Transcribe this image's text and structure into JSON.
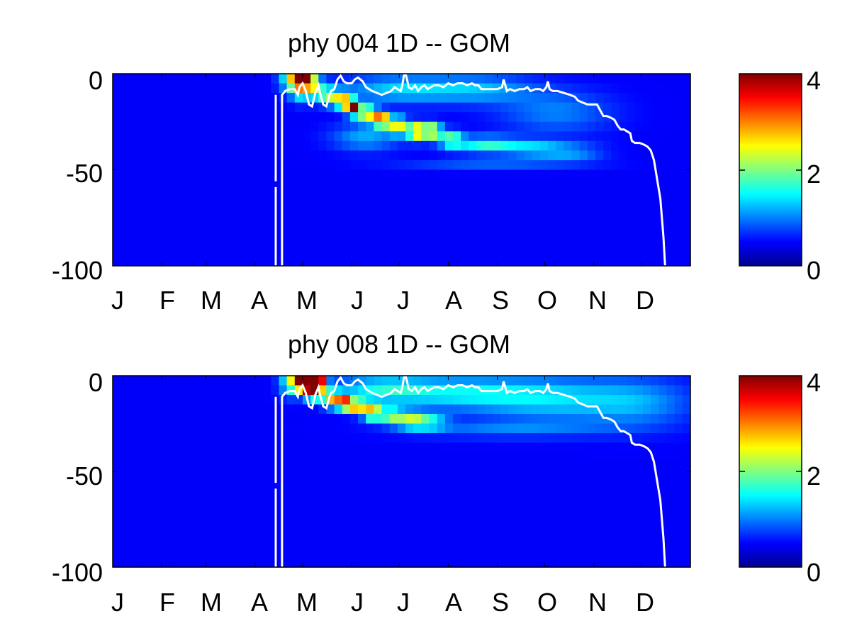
{
  "colors": {
    "colormap": "jet",
    "background_cell": "#00008f",
    "contour_line": "#ffffff",
    "axes": "#000000"
  },
  "chart_data": [
    {
      "type": "heatmap",
      "title": "phy  004 1D   -- GOM",
      "x_tick_labels": [
        "J",
        "F",
        "M",
        "A",
        "M",
        "J",
        "J",
        "A",
        "S",
        "O",
        "N",
        "D"
      ],
      "y_ticks": [
        0,
        -50,
        -100
      ],
      "y_tick_labels": [
        "0",
        "-50",
        "-100"
      ],
      "xlim": [
        0,
        365
      ],
      "ylim": [
        -100,
        0
      ],
      "colorbar": {
        "clim": [
          0,
          4
        ],
        "ticks": [
          0,
          2,
          4
        ],
        "tick_labels": [
          "0",
          "2",
          "4"
        ]
      },
      "blobs": [
        {
          "day": 112,
          "depth": -2,
          "value": 1.4,
          "sd": 5,
          "sz": 5
        },
        {
          "day": 117,
          "depth": -3,
          "value": 3.2,
          "sd": 3,
          "sz": 3
        },
        {
          "day": 121,
          "depth": -2,
          "value": 4.0,
          "sd": 2.5,
          "sz": 2.5
        },
        {
          "day": 125,
          "depth": -4,
          "value": 2.0,
          "sd": 3,
          "sz": 3
        },
        {
          "day": 118,
          "depth": -9,
          "value": 1.2,
          "sd": 4,
          "sz": 4
        },
        {
          "day": 128,
          "depth": -8,
          "value": 1.4,
          "sd": 5,
          "sz": 4
        },
        {
          "day": 137,
          "depth": -12,
          "value": 1.6,
          "sd": 4,
          "sz": 3
        },
        {
          "day": 146,
          "depth": -14,
          "value": 2.6,
          "sd": 4,
          "sz": 3
        },
        {
          "day": 152,
          "depth": -18,
          "value": 3.6,
          "sd": 3,
          "sz": 2.5
        },
        {
          "day": 161,
          "depth": -21,
          "value": 2.5,
          "sd": 4,
          "sz": 3
        },
        {
          "day": 170,
          "depth": -24,
          "value": 3.8,
          "sd": 3,
          "sz": 2.5
        },
        {
          "day": 180,
          "depth": -27,
          "value": 2.4,
          "sd": 4,
          "sz": 3
        },
        {
          "day": 192,
          "depth": -30,
          "value": 2.9,
          "sd": 4,
          "sz": 3
        },
        {
          "day": 202,
          "depth": -30,
          "value": 2.4,
          "sd": 4,
          "sz": 3
        },
        {
          "day": 214,
          "depth": -34,
          "value": 1.6,
          "sd": 5,
          "sz": 3
        },
        {
          "day": 235,
          "depth": -37,
          "value": 1.3,
          "sd": 14,
          "sz": 3
        },
        {
          "day": 265,
          "depth": -39,
          "value": 0.9,
          "sd": 14,
          "sz": 3
        },
        {
          "day": 290,
          "depth": -41,
          "value": 0.7,
          "sd": 14,
          "sz": 3
        },
        {
          "day": 160,
          "depth": -33,
          "value": 0.8,
          "sd": 15,
          "sz": 5
        },
        {
          "day": 180,
          "depth": -8,
          "value": 0.9,
          "sd": 25,
          "sz": 5
        },
        {
          "day": 230,
          "depth": -8,
          "value": 0.8,
          "sd": 25,
          "sz": 5
        },
        {
          "day": 280,
          "depth": -20,
          "value": 0.6,
          "sd": 25,
          "sz": 8
        },
        {
          "day": 240,
          "depth": -47,
          "value": 0.45,
          "sd": 40,
          "sz": 2
        }
      ],
      "contour": [
        [
          107,
          -11
        ],
        [
          107,
          -100
        ],
        [
          107,
          -11
        ],
        [
          109,
          -9
        ],
        [
          112,
          -8
        ],
        [
          115,
          -8
        ],
        [
          117,
          -11
        ],
        [
          118,
          -7
        ],
        [
          120,
          -5
        ],
        [
          122,
          -9
        ],
        [
          124,
          -16
        ],
        [
          126,
          -17
        ],
        [
          128,
          -10
        ],
        [
          130,
          -6
        ],
        [
          131,
          -10
        ],
        [
          133,
          -16
        ],
        [
          135,
          -17
        ],
        [
          137,
          -11
        ],
        [
          138,
          -9
        ],
        [
          140,
          -8
        ],
        [
          142,
          -3
        ],
        [
          144,
          -1
        ],
        [
          146,
          -4
        ],
        [
          148,
          -5
        ],
        [
          151,
          -5
        ],
        [
          153,
          -3
        ],
        [
          155,
          -2
        ],
        [
          158,
          -4
        ],
        [
          160,
          -7
        ],
        [
          162,
          -8
        ],
        [
          164,
          -9
        ],
        [
          167,
          -10
        ],
        [
          170,
          -11
        ],
        [
          173,
          -10
        ],
        [
          176,
          -9
        ],
        [
          178,
          -7
        ],
        [
          180,
          -8
        ],
        [
          182,
          -9
        ],
        [
          183,
          -6
        ],
        [
          184,
          -1
        ],
        [
          185,
          0
        ],
        [
          186,
          -3
        ],
        [
          187,
          -7
        ],
        [
          189,
          -8
        ],
        [
          191,
          -6
        ],
        [
          193,
          -9
        ],
        [
          195,
          -7
        ],
        [
          197,
          -6
        ],
        [
          199,
          -8
        ],
        [
          201,
          -7
        ],
        [
          203,
          -6
        ],
        [
          206,
          -6
        ],
        [
          209,
          -7
        ],
        [
          212,
          -5
        ],
        [
          215,
          -6
        ],
        [
          218,
          -5
        ],
        [
          221,
          -5
        ],
        [
          224,
          -6
        ],
        [
          227,
          -5
        ],
        [
          229,
          -6
        ],
        [
          231,
          -6
        ],
        [
          233,
          -8
        ],
        [
          236,
          -8
        ],
        [
          240,
          -8
        ],
        [
          243,
          -8
        ],
        [
          246,
          -7
        ],
        [
          247,
          -3
        ],
        [
          248,
          -6
        ],
        [
          249,
          -9
        ],
        [
          251,
          -8
        ],
        [
          254,
          -9
        ],
        [
          257,
          -8
        ],
        [
          260,
          -8
        ],
        [
          262,
          -7
        ],
        [
          264,
          -9
        ],
        [
          267,
          -8
        ],
        [
          270,
          -8
        ],
        [
          272,
          -9
        ],
        [
          274,
          -7
        ],
        [
          275,
          -4
        ],
        [
          276,
          -8
        ],
        [
          278,
          -9
        ],
        [
          281,
          -9
        ],
        [
          285,
          -10
        ],
        [
          289,
          -11
        ],
        [
          292,
          -12
        ],
        [
          294,
          -14
        ],
        [
          297,
          -15
        ],
        [
          300,
          -16
        ],
        [
          303,
          -16
        ],
        [
          306,
          -16
        ],
        [
          308,
          -19
        ],
        [
          310,
          -22
        ],
        [
          312,
          -22
        ],
        [
          315,
          -23
        ],
        [
          317,
          -24
        ],
        [
          319,
          -27
        ],
        [
          321,
          -29
        ],
        [
          323,
          -29
        ],
        [
          325,
          -30
        ],
        [
          327,
          -31
        ],
        [
          328,
          -35
        ],
        [
          330,
          -36
        ],
        [
          333,
          -36
        ],
        [
          336,
          -37
        ],
        [
          338,
          -38
        ],
        [
          340,
          -40
        ],
        [
          342,
          -45
        ],
        [
          344,
          -55
        ],
        [
          346,
          -65
        ],
        [
          347,
          -75
        ],
        [
          348,
          -85
        ],
        [
          349,
          -100
        ]
      ],
      "contour_gap": [
        [
          103,
          -11
        ],
        [
          103,
          -56
        ],
        [
          103,
          -59
        ],
        [
          103,
          -100
        ]
      ]
    },
    {
      "type": "heatmap",
      "title": "phy  008 1D   -- GOM",
      "x_tick_labels": [
        "J",
        "F",
        "M",
        "A",
        "M",
        "J",
        "J",
        "A",
        "S",
        "O",
        "N",
        "D"
      ],
      "y_ticks": [
        0,
        -50,
        -100
      ],
      "y_tick_labels": [
        "0",
        "-50",
        "-100"
      ],
      "xlim": [
        0,
        365
      ],
      "ylim": [
        -100,
        0
      ],
      "colorbar": {
        "clim": [
          0,
          4
        ],
        "ticks": [
          0,
          2,
          4
        ],
        "tick_labels": [
          "0",
          "2",
          "4"
        ]
      },
      "blobs": [
        {
          "day": 113,
          "depth": -3,
          "value": 1.6,
          "sd": 5,
          "sz": 5
        },
        {
          "day": 118,
          "depth": -3,
          "value": 3.4,
          "sd": 3,
          "sz": 3
        },
        {
          "day": 122,
          "depth": -3,
          "value": 4.2,
          "sd": 3,
          "sz": 3
        },
        {
          "day": 127,
          "depth": -3,
          "value": 4.3,
          "sd": 3,
          "sz": 3
        },
        {
          "day": 131,
          "depth": -4,
          "value": 3.2,
          "sd": 3,
          "sz": 3
        },
        {
          "day": 126,
          "depth": -9,
          "value": 3.0,
          "sd": 3,
          "sz": 2.5
        },
        {
          "day": 138,
          "depth": -12,
          "value": 2.4,
          "sd": 4,
          "sz": 3
        },
        {
          "day": 146,
          "depth": -14,
          "value": 3.3,
          "sd": 3,
          "sz": 2.5
        },
        {
          "day": 154,
          "depth": -16,
          "value": 2.9,
          "sd": 4,
          "sz": 2.5
        },
        {
          "day": 164,
          "depth": -19,
          "value": 2.6,
          "sd": 4,
          "sz": 3
        },
        {
          "day": 176,
          "depth": -21,
          "value": 1.7,
          "sd": 5,
          "sz": 3
        },
        {
          "day": 188,
          "depth": -23,
          "value": 1.6,
          "sd": 6,
          "sz": 3
        },
        {
          "day": 200,
          "depth": -24,
          "value": 1.2,
          "sd": 8,
          "sz": 3
        },
        {
          "day": 170,
          "depth": -7,
          "value": 1.1,
          "sd": 22,
          "sz": 5
        },
        {
          "day": 220,
          "depth": -9,
          "value": 1.0,
          "sd": 30,
          "sz": 6
        },
        {
          "day": 275,
          "depth": -12,
          "value": 0.9,
          "sd": 30,
          "sz": 8
        },
        {
          "day": 330,
          "depth": -14,
          "value": 0.75,
          "sd": 25,
          "sz": 9
        },
        {
          "day": 250,
          "depth": -28,
          "value": 0.55,
          "sd": 45,
          "sz": 3
        }
      ],
      "contour": [
        [
          107,
          -11
        ],
        [
          107,
          -100
        ],
        [
          107,
          -11
        ],
        [
          109,
          -9
        ],
        [
          112,
          -8
        ],
        [
          115,
          -8
        ],
        [
          117,
          -11
        ],
        [
          118,
          -7
        ],
        [
          120,
          -5
        ],
        [
          122,
          -9
        ],
        [
          124,
          -16
        ],
        [
          126,
          -17
        ],
        [
          128,
          -10
        ],
        [
          130,
          -6
        ],
        [
          131,
          -10
        ],
        [
          133,
          -16
        ],
        [
          135,
          -17
        ],
        [
          137,
          -11
        ],
        [
          138,
          -9
        ],
        [
          140,
          -8
        ],
        [
          142,
          -3
        ],
        [
          144,
          -1
        ],
        [
          146,
          -4
        ],
        [
          148,
          -5
        ],
        [
          151,
          -5
        ],
        [
          153,
          -3
        ],
        [
          155,
          -2
        ],
        [
          158,
          -4
        ],
        [
          160,
          -7
        ],
        [
          162,
          -8
        ],
        [
          164,
          -9
        ],
        [
          167,
          -10
        ],
        [
          170,
          -11
        ],
        [
          173,
          -10
        ],
        [
          176,
          -9
        ],
        [
          178,
          -7
        ],
        [
          180,
          -8
        ],
        [
          182,
          -9
        ],
        [
          183,
          -6
        ],
        [
          184,
          -1
        ],
        [
          185,
          0
        ],
        [
          186,
          -3
        ],
        [
          187,
          -7
        ],
        [
          189,
          -8
        ],
        [
          191,
          -6
        ],
        [
          193,
          -9
        ],
        [
          195,
          -7
        ],
        [
          197,
          -6
        ],
        [
          199,
          -8
        ],
        [
          201,
          -7
        ],
        [
          203,
          -6
        ],
        [
          206,
          -6
        ],
        [
          209,
          -7
        ],
        [
          212,
          -5
        ],
        [
          215,
          -6
        ],
        [
          218,
          -5
        ],
        [
          221,
          -5
        ],
        [
          224,
          -6
        ],
        [
          227,
          -5
        ],
        [
          229,
          -6
        ],
        [
          231,
          -6
        ],
        [
          233,
          -8
        ],
        [
          236,
          -8
        ],
        [
          240,
          -8
        ],
        [
          243,
          -8
        ],
        [
          246,
          -7
        ],
        [
          247,
          -3
        ],
        [
          248,
          -6
        ],
        [
          249,
          -9
        ],
        [
          251,
          -8
        ],
        [
          254,
          -9
        ],
        [
          257,
          -8
        ],
        [
          260,
          -8
        ],
        [
          262,
          -7
        ],
        [
          264,
          -9
        ],
        [
          267,
          -8
        ],
        [
          270,
          -8
        ],
        [
          272,
          -9
        ],
        [
          274,
          -7
        ],
        [
          275,
          -4
        ],
        [
          276,
          -8
        ],
        [
          278,
          -9
        ],
        [
          281,
          -9
        ],
        [
          285,
          -10
        ],
        [
          289,
          -11
        ],
        [
          292,
          -12
        ],
        [
          294,
          -14
        ],
        [
          297,
          -15
        ],
        [
          300,
          -16
        ],
        [
          303,
          -16
        ],
        [
          306,
          -16
        ],
        [
          308,
          -19
        ],
        [
          310,
          -22
        ],
        [
          312,
          -22
        ],
        [
          315,
          -23
        ],
        [
          317,
          -24
        ],
        [
          319,
          -27
        ],
        [
          321,
          -29
        ],
        [
          323,
          -29
        ],
        [
          325,
          -30
        ],
        [
          327,
          -31
        ],
        [
          328,
          -35
        ],
        [
          330,
          -36
        ],
        [
          333,
          -36
        ],
        [
          336,
          -37
        ],
        [
          338,
          -38
        ],
        [
          340,
          -40
        ],
        [
          342,
          -45
        ],
        [
          344,
          -55
        ],
        [
          346,
          -65
        ],
        [
          347,
          -75
        ],
        [
          348,
          -85
        ],
        [
          349,
          -100
        ]
      ],
      "contour_gap": [
        [
          103,
          -11
        ],
        [
          103,
          -56
        ],
        [
          103,
          -59
        ],
        [
          103,
          -100
        ]
      ]
    }
  ]
}
